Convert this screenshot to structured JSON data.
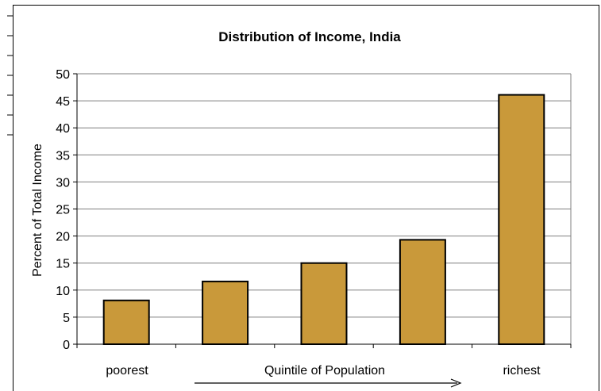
{
  "chart_data": {
    "type": "bar",
    "title": "Distribution of Income, India",
    "ylabel": "Percent of Total Income",
    "xlabel": "Quintile of Population",
    "x_end_labels": {
      "left": "poorest",
      "right": "richest"
    },
    "categories": [
      "",
      "",
      "",
      "",
      ""
    ],
    "values": [
      8.1,
      11.6,
      15.0,
      19.3,
      46.1
    ],
    "ylim": [
      0,
      50
    ],
    "yticks": [
      0,
      5,
      10,
      15,
      20,
      25,
      30,
      35,
      40,
      45,
      50
    ],
    "grid": true,
    "legend": "none",
    "colors": {
      "bar_fill": "#C9993A",
      "bar_stroke": "#000000",
      "gridline": "#7f7f7f",
      "axis": "#7f7f7f"
    }
  }
}
